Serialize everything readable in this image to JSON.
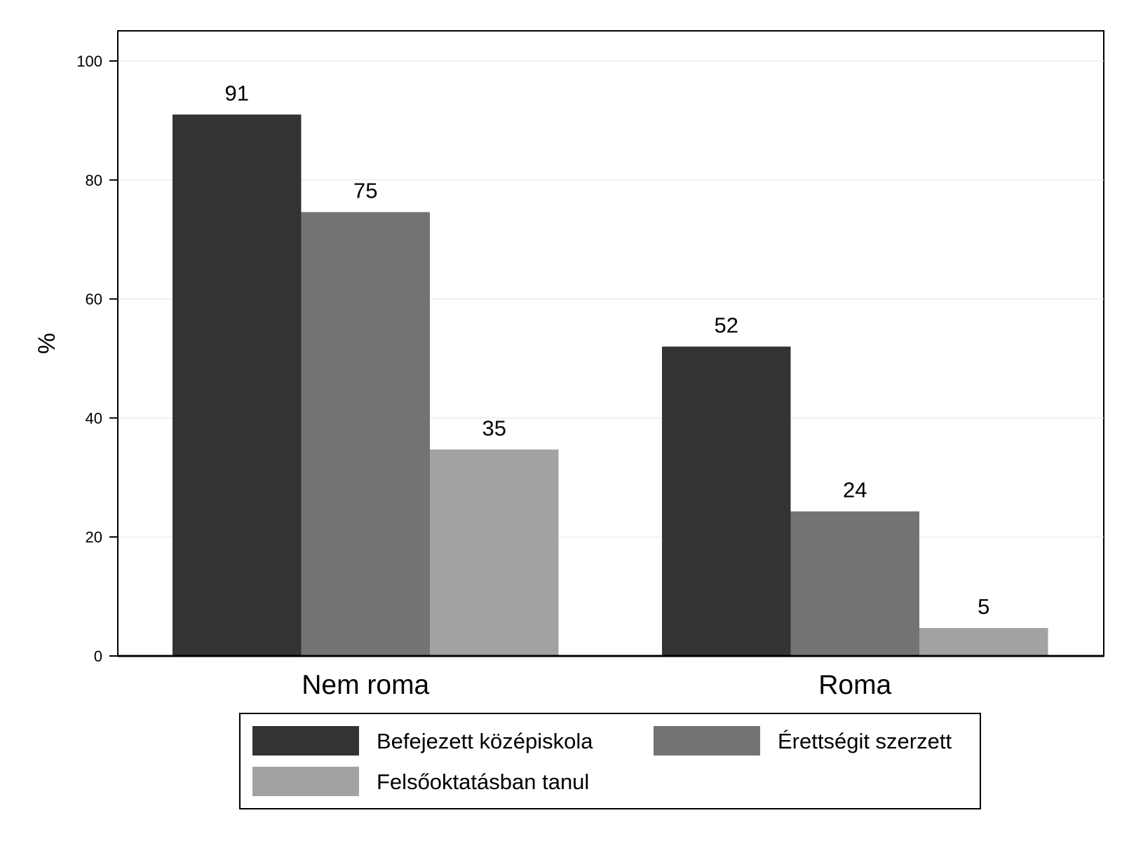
{
  "chart_data": {
    "type": "bar",
    "title": "",
    "xlabel": "",
    "ylabel": "%",
    "ylim": [
      0,
      105
    ],
    "yticks": [
      0,
      20,
      40,
      60,
      80,
      100
    ],
    "grid": true,
    "legend_position": "bottom",
    "categories": [
      "Nem roma",
      "Roma"
    ],
    "series": [
      {
        "name": "Befejezett középiskola",
        "color": "#333333",
        "values": [
          91,
          52
        ],
        "labels": [
          "91",
          "52"
        ]
      },
      {
        "name": "Érettségit szerzett",
        "color": "#737373",
        "values": [
          74.6,
          24.3
        ],
        "labels": [
          "75",
          "24"
        ]
      },
      {
        "name": "Felsőoktatásban tanul",
        "color": "#a2a2a2",
        "values": [
          34.7,
          4.7
        ],
        "labels": [
          "35",
          "5"
        ]
      }
    ]
  }
}
